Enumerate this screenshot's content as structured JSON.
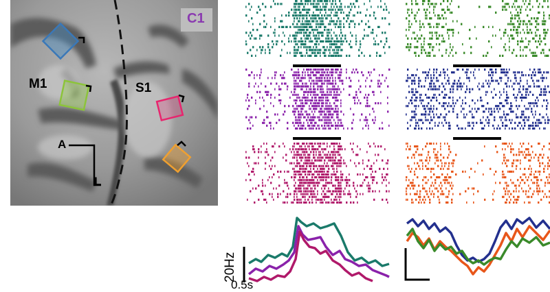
{
  "panel_label": "C1",
  "brain": {
    "region_left": "M1",
    "region_right": "S1",
    "axis_anterior": "A",
    "axis_lateral": "L",
    "roi_colors": {
      "blue": "#4a8cc2",
      "lime": "#9ccc5a",
      "pink": "#e8256e",
      "orange": "#f0a030"
    }
  },
  "rasters": [
    {
      "name": "teal",
      "color": "#1a7a6a",
      "activity": "strong-onset"
    },
    {
      "name": "green",
      "color": "#3a8a2a",
      "activity": "suppressed"
    },
    {
      "name": "purple",
      "color": "#8a22aa",
      "activity": "strong-onset"
    },
    {
      "name": "blue",
      "color": "#23308e",
      "activity": "sustained-mixed"
    },
    {
      "name": "magenta",
      "color": "#b0196a",
      "activity": "strong-onset"
    },
    {
      "name": "orange",
      "color": "#e8561a",
      "activity": "suppressed"
    }
  ],
  "scale": {
    "rate_label": "20Hz",
    "time_label": "0.5s"
  }
}
